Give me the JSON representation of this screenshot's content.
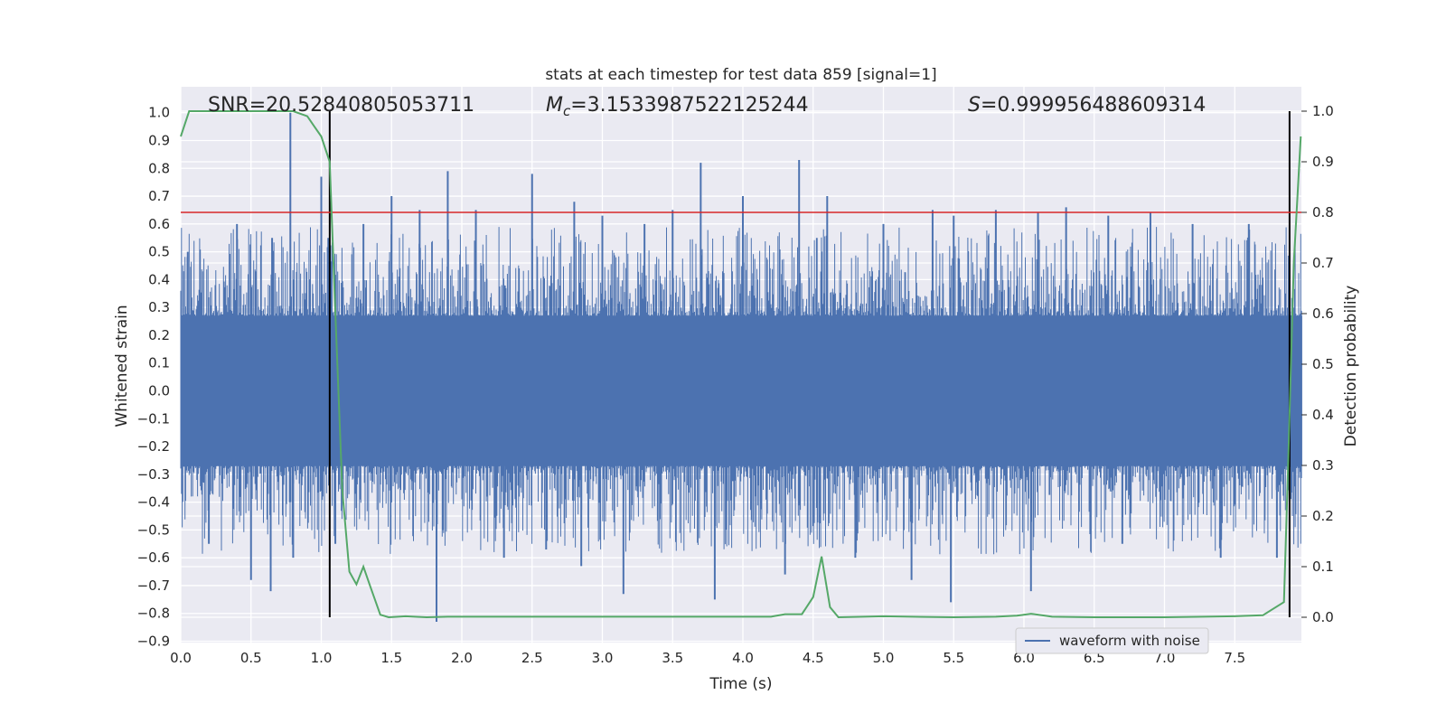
{
  "chart_data": {
    "type": "line",
    "title": "stats at each timestep for test data 859 [signal=1]",
    "xlabel": "Time (s)",
    "ylabel": "Whitened strain",
    "ylabel_right": "Detection probability",
    "xlim": [
      0.0,
      8.0
    ],
    "ylim": [
      -0.9,
      1.05
    ],
    "ylim_right": [
      -0.045,
      1.03
    ],
    "x_ticks": [
      "0.0",
      "0.5",
      "1.0",
      "1.5",
      "2.0",
      "2.5",
      "3.0",
      "3.5",
      "4.0",
      "4.5",
      "5.0",
      "5.5",
      "6.0",
      "6.5",
      "7.0",
      "7.5"
    ],
    "y_ticks": [
      "−0.9",
      "−0.8",
      "−0.7",
      "−0.6",
      "−0.5",
      "−0.4",
      "−0.3",
      "−0.2",
      "−0.1",
      "0.0",
      "0.1",
      "0.2",
      "0.3",
      "0.4",
      "0.5",
      "0.6",
      "0.7",
      "0.8",
      "0.9",
      "1.0"
    ],
    "y_right_ticks": [
      "0.0",
      "0.1",
      "0.2",
      "0.3",
      "0.4",
      "0.5",
      "0.6",
      "0.7",
      "0.8",
      "0.9",
      "1.0"
    ],
    "grid": true,
    "legend": {
      "placement": "lower-right",
      "entries": [
        "waveform with noise"
      ]
    },
    "annotations": {
      "snr_text": "SNR=20.52840805053711",
      "mc_symbol": "M",
      "mc_sub": "c",
      "mc_value": "=3.1533987522125244",
      "s_symbol": "S",
      "s_value": "=0.999956488609314"
    },
    "threshold_line": {
      "y_right": 0.8,
      "color": "#d62728"
    },
    "vertical_markers": [
      1.06,
      7.89
    ],
    "series": [
      {
        "name": "waveform with noise",
        "color": "#4c72b0",
        "core_amplitude": 0.27,
        "spikes": [
          [
            0.05,
            0.5
          ],
          [
            0.2,
            -0.55
          ],
          [
            0.4,
            0.6
          ],
          [
            0.5,
            -0.68
          ],
          [
            0.65,
            0.55
          ],
          [
            0.64,
            -0.72
          ],
          [
            0.78,
            1.0
          ],
          [
            0.8,
            -0.6
          ],
          [
            1.0,
            0.77
          ],
          [
            1.05,
            0.55
          ],
          [
            1.1,
            -0.55
          ],
          [
            1.3,
            0.6
          ],
          [
            1.5,
            0.7
          ],
          [
            1.7,
            0.65
          ],
          [
            1.82,
            -0.83
          ],
          [
            1.9,
            0.79
          ],
          [
            2.1,
            0.65
          ],
          [
            2.3,
            -0.6
          ],
          [
            2.5,
            0.78
          ],
          [
            2.6,
            -0.57
          ],
          [
            2.8,
            0.68
          ],
          [
            2.85,
            -0.63
          ],
          [
            3.0,
            0.63
          ],
          [
            3.15,
            -0.73
          ],
          [
            3.3,
            0.6
          ],
          [
            3.5,
            0.65
          ],
          [
            3.7,
            0.82
          ],
          [
            3.8,
            -0.75
          ],
          [
            4.0,
            0.7
          ],
          [
            4.3,
            -0.66
          ],
          [
            4.4,
            0.83
          ],
          [
            4.6,
            0.7
          ],
          [
            4.8,
            -0.6
          ],
          [
            5.0,
            0.6
          ],
          [
            5.2,
            -0.68
          ],
          [
            5.35,
            0.65
          ],
          [
            5.5,
            0.63
          ],
          [
            5.48,
            -0.76
          ],
          [
            5.8,
            0.65
          ],
          [
            6.05,
            -0.72
          ],
          [
            6.1,
            0.64
          ],
          [
            6.3,
            0.66
          ],
          [
            6.6,
            0.63
          ],
          [
            6.7,
            -0.55
          ],
          [
            6.9,
            0.64
          ],
          [
            7.2,
            0.6
          ],
          [
            7.4,
            -0.6
          ],
          [
            7.6,
            0.6
          ],
          [
            7.8,
            -0.6
          ]
        ]
      },
      {
        "name": "detection probability",
        "color": "#55a868",
        "axis": "right",
        "x": [
          0.0,
          0.06,
          0.2,
          0.4,
          0.6,
          0.8,
          0.9,
          0.95,
          1.0,
          1.06,
          1.1,
          1.15,
          1.2,
          1.25,
          1.3,
          1.35,
          1.42,
          1.48,
          1.6,
          1.75,
          1.9,
          2.5,
          3.0,
          4.0,
          4.2,
          4.3,
          4.42,
          4.5,
          4.56,
          4.62,
          4.68,
          5.0,
          5.5,
          5.8,
          5.95,
          6.05,
          6.2,
          6.5,
          7.0,
          7.5,
          7.7,
          7.85,
          7.88,
          7.92,
          7.97
        ],
        "y": [
          0.95,
          1.0,
          1.0,
          1.0,
          1.0,
          1.0,
          0.99,
          0.97,
          0.95,
          0.9,
          0.6,
          0.25,
          0.09,
          0.065,
          0.1,
          0.06,
          0.005,
          0.0,
          0.002,
          0.0,
          0.001,
          0.001,
          0.001,
          0.001,
          0.001,
          0.006,
          0.006,
          0.04,
          0.12,
          0.02,
          0.0,
          0.002,
          0.0,
          0.001,
          0.003,
          0.007,
          0.001,
          0.0,
          0.0,
          0.002,
          0.004,
          0.03,
          0.3,
          0.7,
          0.95
        ]
      }
    ]
  }
}
